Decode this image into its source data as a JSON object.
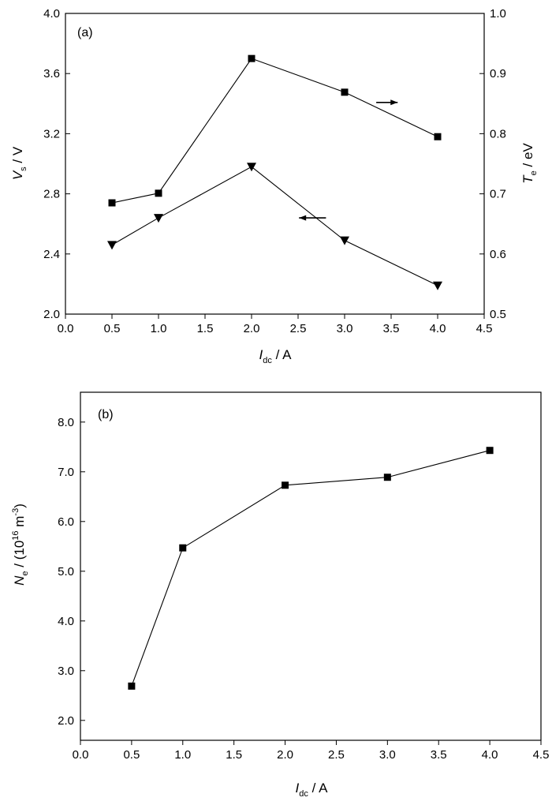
{
  "chart_data": [
    {
      "type": "line",
      "panel_label": "(a)",
      "x": [
        0.5,
        1.0,
        2.0,
        3.0,
        4.0
      ],
      "xlim": [
        0.0,
        4.5
      ],
      "xticks": [
        "0.0",
        "0.5",
        "1.0",
        "1.5",
        "2.0",
        "2.5",
        "3.0",
        "3.5",
        "4.0",
        "4.5"
      ],
      "xlabel": {
        "main": "I",
        "sub": "dc",
        "unit": " / A"
      },
      "ylim_left": [
        2.0,
        4.0
      ],
      "yticks_left": [
        "2.0",
        "2.4",
        "2.8",
        "3.2",
        "3.6",
        "4.0"
      ],
      "ylabel_left": {
        "main": "V",
        "sub": "s",
        "unit": " / V"
      },
      "ylim_right": [
        0.5,
        1.0
      ],
      "yticks_right": [
        "0.5",
        "0.6",
        "0.7",
        "0.8",
        "0.9",
        "1.0"
      ],
      "ylabel_right": {
        "main": "T",
        "sub": "e",
        "unit": " / eV"
      },
      "grid": false,
      "series": [
        {
          "axis": "left",
          "marker": "triangle-down",
          "values": [
            2.46,
            2.64,
            2.98,
            2.49,
            2.19
          ],
          "arrow": "left"
        },
        {
          "axis": "right",
          "marker": "square",
          "values": [
            0.685,
            0.701,
            0.925,
            0.869,
            0.795
          ],
          "arrow": "right"
        }
      ]
    },
    {
      "type": "line",
      "panel_label": "(b)",
      "x": [
        0.5,
        1.0,
        2.0,
        3.0,
        4.0
      ],
      "xlim": [
        0.0,
        4.5
      ],
      "xticks": [
        "0.0",
        "0.5",
        "1.0",
        "1.5",
        "2.0",
        "2.5",
        "3.0",
        "3.5",
        "4.0",
        "4.5"
      ],
      "xlabel": {
        "main": "I",
        "sub": "dc",
        "unit": " / A"
      },
      "ylim": [
        1.6,
        8.6
      ],
      "yticks": [
        "2.0",
        "3.0",
        "4.0",
        "5.0",
        "6.0",
        "7.0",
        "8.0"
      ],
      "ylabel": {
        "main": "N",
        "sub": "e",
        "unit1": " / (10",
        "sup1": "16",
        "unit2": " m",
        "sup2": "-3",
        "unit3": ")"
      },
      "grid": false,
      "series": [
        {
          "marker": "square",
          "values": [
            2.69,
            5.47,
            6.73,
            6.89,
            7.43
          ]
        }
      ]
    }
  ]
}
